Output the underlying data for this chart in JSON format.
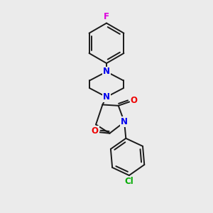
{
  "background_color": "#ebebeb",
  "bond_color": "#1a1a1a",
  "bond_width": 1.4,
  "atom_colors": {
    "N": "#0000ee",
    "O": "#ee0000",
    "F": "#dd00dd",
    "Cl": "#00aa00",
    "C": "#1a1a1a"
  },
  "font_size_atom": 8.5
}
